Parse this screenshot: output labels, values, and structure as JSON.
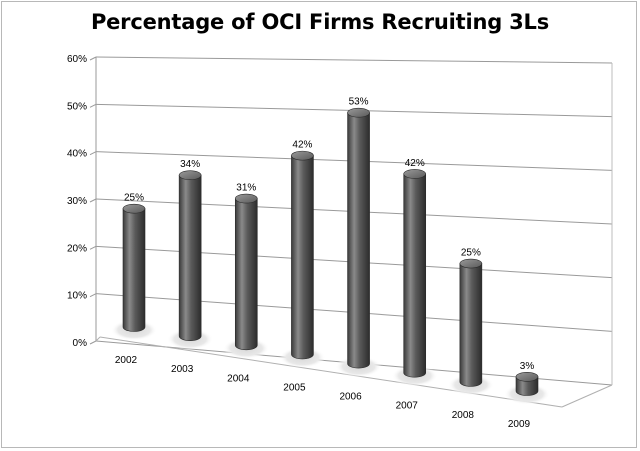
{
  "chart_data": {
    "type": "bar",
    "title": "Percentage of OCI Firms Recruiting 3Ls",
    "xlabel": "",
    "ylabel": "",
    "categories": [
      "2002",
      "2003",
      "2004",
      "2005",
      "2006",
      "2007",
      "2008",
      "2009"
    ],
    "values": [
      25,
      34,
      31,
      42,
      53,
      42,
      25,
      3
    ],
    "data_labels": [
      "25%",
      "34%",
      "31%",
      "42%",
      "53%",
      "42%",
      "25%",
      "3%"
    ],
    "y_ticks": [
      "0%",
      "10%",
      "20%",
      "30%",
      "40%",
      "50%",
      "60%"
    ],
    "ylim": [
      0,
      60
    ],
    "style": "3d-cylinder",
    "bar_color": "#4a4a4a",
    "grid": true,
    "legend": "none"
  }
}
